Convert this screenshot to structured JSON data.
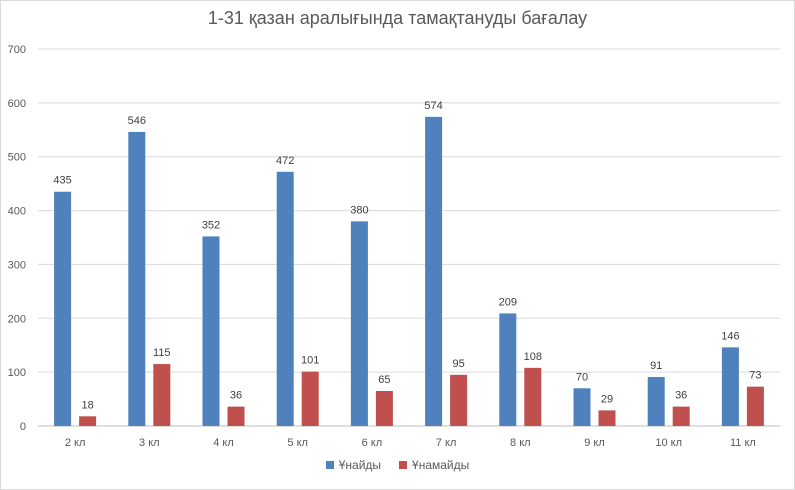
{
  "chart_data": {
    "type": "bar",
    "title": "1-31 қазан аралығында тамақтануды бағалау",
    "xlabel": "",
    "ylabel": "",
    "categories": [
      "2 кл",
      "3 кл",
      "4 кл",
      "5 кл",
      "6 кл",
      "7 кл",
      "8 кл",
      "9 кл",
      "10 кл",
      "11 кл"
    ],
    "series": [
      {
        "name": "Ұнайды",
        "color": "#4f81bd",
        "values": [
          435,
          546,
          352,
          472,
          380,
          574,
          209,
          70,
          91,
          146
        ]
      },
      {
        "name": "Ұнамайды",
        "color": "#c0504d",
        "values": [
          18,
          115,
          36,
          101,
          65,
          95,
          108,
          29,
          36,
          73
        ]
      }
    ],
    "ylim": [
      0,
      700
    ],
    "yticks": [
      0,
      100,
      200,
      300,
      400,
      500,
      600,
      700
    ],
    "grid": true,
    "legend_position": "bottom"
  }
}
